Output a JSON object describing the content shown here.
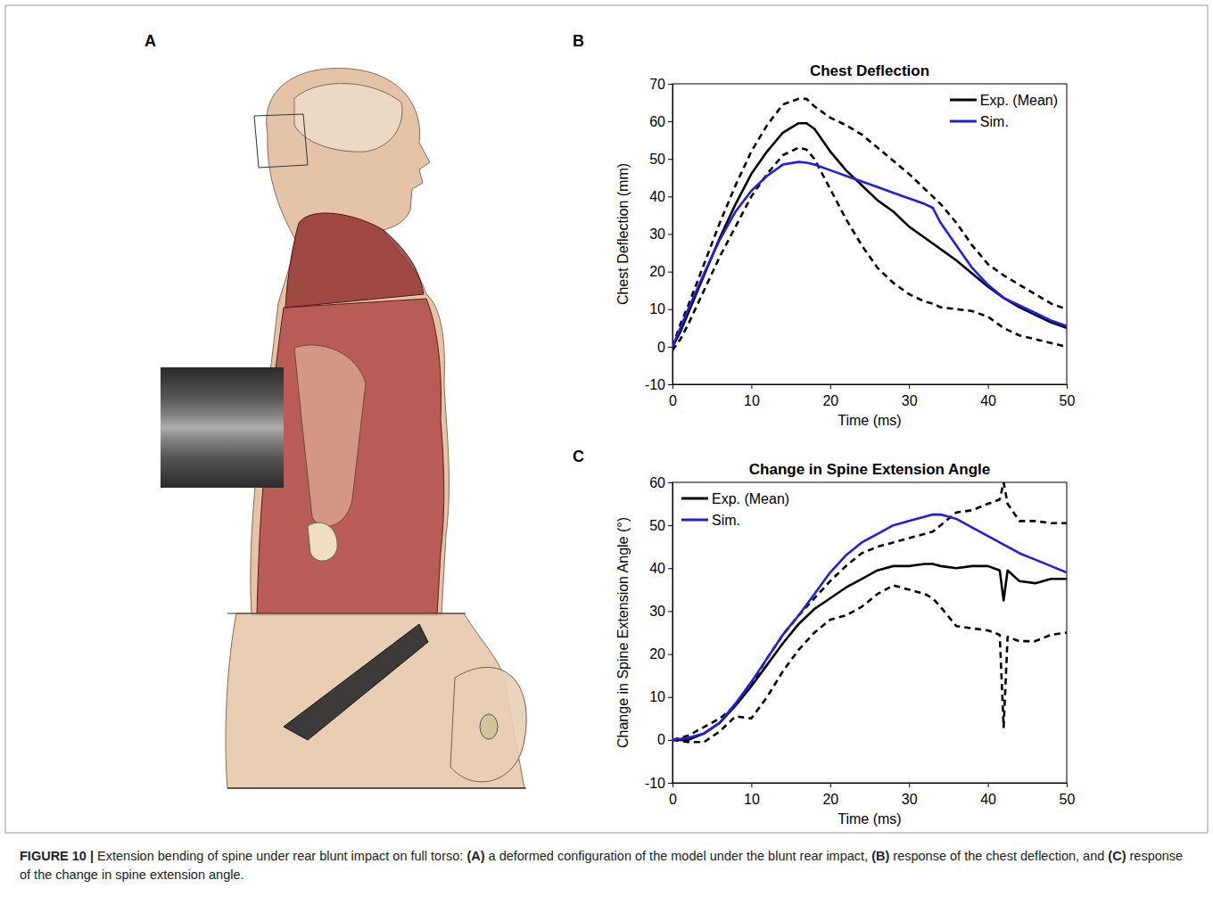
{
  "panel_labels": [
    "A",
    "B",
    "C"
  ],
  "caption": {
    "figure_label": "FIGURE 10 |",
    "intro": " Extension bending of spine under rear blunt impact on full torso: ",
    "parts": [
      {
        "letter": "(A)",
        "text": " a deformed configuration of the model under the blunt rear impact, "
      },
      {
        "letter": "(B)",
        "text": " response of the chest deflection, and "
      },
      {
        "letter": "(C)",
        "text": " response of the change in spine extension angle."
      }
    ]
  },
  "chart_data": [
    {
      "type": "line",
      "title": "Chest Deflection",
      "x_label": "Time (ms)",
      "y_label": "Chest Deflection (mm)",
      "x": [
        0,
        1,
        2,
        4,
        6,
        8,
        10,
        12,
        14,
        16,
        17,
        18,
        20,
        22,
        24,
        26,
        28,
        30,
        32,
        33,
        34,
        36,
        38,
        40,
        42,
        44,
        46,
        48,
        50
      ],
      "xlim": [
        0,
        50
      ],
      "xticks": [
        0,
        10,
        20,
        30,
        40,
        50
      ],
      "ylim": [
        -10,
        70
      ],
      "yticks": [
        -10,
        0,
        10,
        20,
        30,
        40,
        50,
        60,
        70
      ],
      "legend": "upper right",
      "series": [
        {
          "name": "Exp. (Mean)",
          "color": "#000000",
          "line_style": "solid",
          "values": [
            0,
            4,
            9,
            19,
            29,
            38,
            46,
            52,
            57,
            59.5,
            59.5,
            58,
            52,
            47,
            43,
            39,
            36,
            32,
            29,
            27.5,
            26,
            23,
            19.5,
            16,
            13,
            10.5,
            8.5,
            6.5,
            5
          ]
        },
        {
          "name": "Sim.",
          "color": "#1f1fdd",
          "line_style": "solid",
          "values": [
            0,
            5,
            10,
            19.5,
            28.5,
            36,
            41.5,
            45.5,
            48.5,
            49.2,
            49,
            48.5,
            47,
            45.5,
            44,
            42.5,
            41,
            39.5,
            38,
            37,
            33,
            27,
            21,
            16.5,
            13,
            11,
            9,
            7,
            5.5
          ]
        },
        {
          "color": "#000000",
          "line_style": "dashed",
          "values": [
            0,
            6,
            11,
            22,
            33,
            43,
            52,
            59,
            64.5,
            66,
            66,
            64,
            61,
            59,
            56.5,
            53,
            49.5,
            46,
            42,
            40,
            38,
            33,
            27,
            22,
            19,
            16.5,
            14,
            11.5,
            10
          ]
        },
        {
          "color": "#000000",
          "line_style": "dashed",
          "values": [
            -1,
            2,
            6,
            15,
            24,
            32,
            40,
            46,
            51,
            53,
            52.5,
            50,
            42,
            34,
            27,
            21,
            17,
            14,
            12,
            11.5,
            10.5,
            10,
            9.5,
            8,
            5,
            3,
            2,
            1,
            0
          ]
        }
      ]
    },
    {
      "type": "line",
      "title": "Change in Spine Extension Angle",
      "x_label": "Time (ms)",
      "y_label": "Change in Spine Extension Angle (°)",
      "x": [
        0,
        2,
        4,
        6,
        8,
        10,
        12,
        14,
        16,
        18,
        20,
        22,
        24,
        26,
        28,
        30,
        32,
        33,
        34,
        36,
        38,
        40,
        41.5,
        42,
        42.5,
        44,
        46,
        48,
        50
      ],
      "xlim": [
        0,
        50
      ],
      "xticks": [
        0,
        10,
        20,
        30,
        40,
        50
      ],
      "ylim": [
        -10,
        60
      ],
      "yticks": [
        -10,
        0,
        10,
        20,
        30,
        40,
        50,
        60
      ],
      "legend": "upper left",
      "series": [
        {
          "name": "Exp. (Mean)",
          "color": "#000000",
          "line_style": "solid",
          "values": [
            0,
            0,
            1.5,
            4,
            8,
            12.5,
            17.5,
            22.5,
            27,
            30.5,
            33,
            35.5,
            37.5,
            39.5,
            40.5,
            40.5,
            41,
            41,
            40.5,
            40,
            40.5,
            40.5,
            39.5,
            32.5,
            39.5,
            37,
            36.5,
            37.5,
            37.5
          ]
        },
        {
          "name": "Sim.",
          "color": "#1f1fdd",
          "line_style": "solid",
          "values": [
            0,
            0.5,
            1.5,
            4,
            8.5,
            13.5,
            19,
            24.5,
            29,
            34,
            39,
            43,
            46,
            48,
            50,
            51,
            52,
            52.5,
            52.5,
            51.5,
            49.5,
            47.5,
            46,
            45.5,
            45,
            43.5,
            42,
            40.5,
            39
          ]
        },
        {
          "color": "#000000",
          "line_style": "dashed",
          "values": [
            0,
            1,
            3,
            5,
            8,
            13,
            19,
            24.5,
            29,
            33,
            37,
            40.5,
            43.5,
            45,
            46,
            47,
            48,
            48.5,
            50,
            53,
            53.5,
            55,
            56,
            60,
            55,
            51,
            51,
            50.5,
            50.5
          ]
        },
        {
          "color": "#000000",
          "line_style": "dashed",
          "values": [
            0,
            -0.5,
            -0.5,
            2,
            5.5,
            5,
            10,
            16,
            21,
            25,
            28,
            29,
            31,
            34,
            36,
            35,
            34,
            33,
            31,
            26.5,
            26,
            25.5,
            24.5,
            3,
            24,
            23,
            23,
            24.5,
            25
          ]
        }
      ]
    }
  ]
}
